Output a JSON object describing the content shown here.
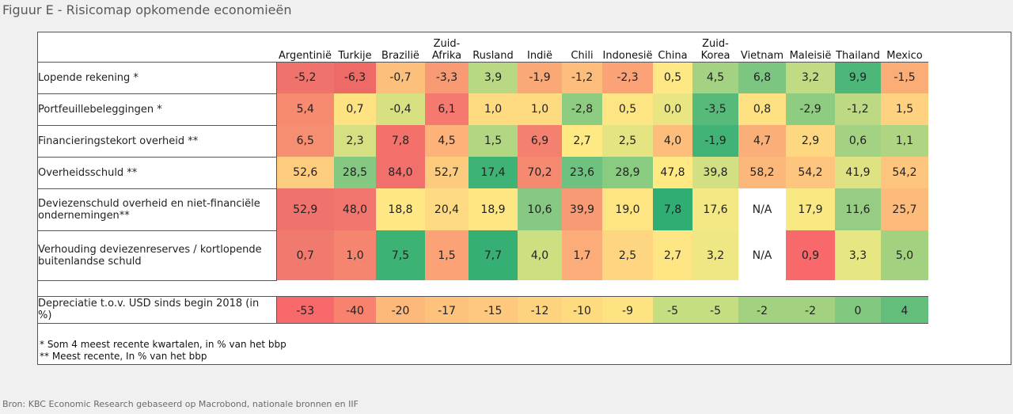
{
  "title": "Figuur E - Risicomap opkomende economieën",
  "source": "Bron: KBC Economic Research gebaseerd op Macrobond, nationale bronnen en  IIF",
  "chart_data": {
    "type": "heatmap",
    "columns": [
      "Argentinië",
      "Turkije",
      "Brazilië",
      "Zuid-\nAfrika",
      "Rusland",
      "Indië",
      "Chili",
      "Indonesië",
      "China",
      "Zuid-\nKorea",
      "Vietnam",
      "Maleisië",
      "Thailand",
      "Mexico"
    ],
    "rows": [
      {
        "label": "Lopende rekening *",
        "values": [
          "-5,2",
          "-6,3",
          "-0,7",
          "-3,3",
          "3,9",
          "-1,9",
          "-1,2",
          "-2,3",
          "0,5",
          "4,5",
          "6,8",
          "3,2",
          "9,9",
          "-1,5"
        ],
        "colors": [
          "#f0726c",
          "#ed6a67",
          "#fdc07c",
          "#f89b74",
          "#b8d883",
          "#fba877",
          "#fdbd7d",
          "#fba376",
          "#fee886",
          "#a3d283",
          "#7dc682",
          "#c1da84",
          "#4cb778",
          "#fbad78"
        ]
      },
      {
        "label": "Portfeuillebeleggingen *",
        "values": [
          "5,4",
          "0,7",
          "-0,4",
          "6,1",
          "1,0",
          "1,0",
          "-2,8",
          "0,5",
          "0,0",
          "-3,5",
          "0,8",
          "-2,9",
          "-1,2",
          "1,5"
        ],
        "colors": [
          "#f68b71",
          "#ffe382",
          "#d8e182",
          "#f5796e",
          "#feda81",
          "#feda81",
          "#8ecc82",
          "#fee584",
          "#eae583",
          "#58ba7a",
          "#fee182",
          "#8ecc82",
          "#bed983",
          "#fed280"
        ]
      },
      {
        "label": "Financieringstekort overheid **",
        "values": [
          "6,5",
          "2,3",
          "7,8",
          "4,5",
          "1,5",
          "6,9",
          "2,7",
          "2,5",
          "4,0",
          "-1,9",
          "4,7",
          "2,9",
          "0,6",
          "1,1"
        ],
        "colors": [
          "#f68f72",
          "#d6e082",
          "#f4716b",
          "#fcb279",
          "#b3d682",
          "#f4816f",
          "#fee983",
          "#e5e482",
          "#febd7b",
          "#41b376",
          "#faaf78",
          "#fed880",
          "#a3d283",
          "#b0d582"
        ]
      },
      {
        "label": "Overheidsschuld **",
        "values": [
          "52,6",
          "28,5",
          "84,0",
          "52,7",
          "17,4",
          "70,2",
          "23,6",
          "28,9",
          "47,8",
          "39,8",
          "58,2",
          "54,2",
          "41,9",
          "54,2"
        ],
        "colors": [
          "#fdcc7e",
          "#84c882",
          "#f2706b",
          "#fdcb7e",
          "#3fb376",
          "#f68a71",
          "#6fc17f",
          "#8acb82",
          "#fee983",
          "#d2df82",
          "#fcb87a",
          "#fdc57d",
          "#dfe283",
          "#fdc57d"
        ]
      },
      {
        "label": "Deviezenschuld overheid en niet-financiële ondernemingen**",
        "values": [
          "52,9",
          "48,0",
          "18,8",
          "20,4",
          "18,9",
          "10,6",
          "39,9",
          "19,0",
          "7,8",
          "17,6",
          "N/A",
          "17,9",
          "11,6",
          "25,7"
        ],
        "colors": [
          "#f0726c",
          "#f2766d",
          "#fee784",
          "#fedb82",
          "#fee684",
          "#87c882",
          "#f79b74",
          "#fee583",
          "#2fad73",
          "#f4e884",
          "#ffffff",
          "#f8e984",
          "#96cd82",
          "#fcbb7b"
        ]
      },
      {
        "label": "Verhouding deviezenreserves / kortlopende buitenlandse schuld",
        "values": [
          "0,7",
          "1,0",
          "7,5",
          "1,5",
          "7,7",
          "4,0",
          "1,7",
          "2,5",
          "2,7",
          "3,2",
          "N/A",
          "0,9",
          "3,3",
          "5,0"
        ],
        "colors": [
          "#f17a6e",
          "#f5856f",
          "#3db275",
          "#fba376",
          "#35af74",
          "#cde081",
          "#fbac78",
          "#fed580",
          "#fde584",
          "#efe784",
          "#ffffff",
          "#f8696b",
          "#e6e683",
          "#a2d27f"
        ]
      }
    ],
    "depreciation": {
      "label": "Depreciatie t.o.v. USD sinds begin 2018 (in %)",
      "values": [
        "-53",
        "-40",
        "-20",
        "-17",
        "-15",
        "-12",
        "-10",
        "-9",
        "-5",
        "-5",
        "-2",
        "-2",
        "0",
        "4"
      ],
      "colors": [
        "#f8696b",
        "#f9826f",
        "#fdb97a",
        "#fdc27c",
        "#fec87e",
        "#fed380",
        "#fedb81",
        "#fee382",
        "#c6de82",
        "#c6de82",
        "#a2d27f",
        "#a2d27f",
        "#82c87e",
        "#63be7b"
      ]
    },
    "notes": [
      "* Som 4 meest recente kwartalen, in % van het bbp",
      "** Meest recente, In % van het bbp"
    ]
  }
}
